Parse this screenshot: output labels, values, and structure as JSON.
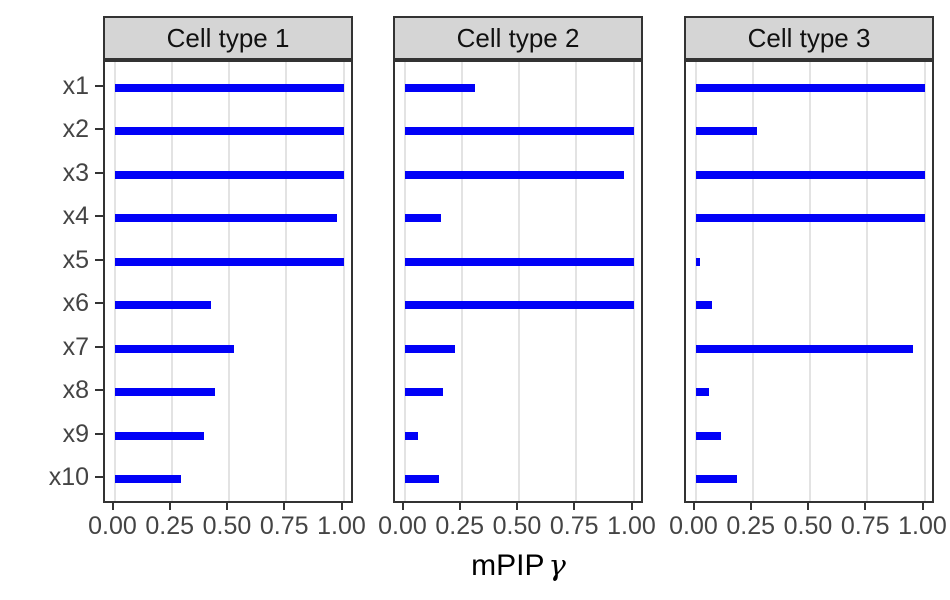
{
  "figure": {
    "background": "#ffffff",
    "bar_color": "#0101f7",
    "strip_fill": "#d5d5d5",
    "panel_border_color": "#333333",
    "gridline_color": "#e3e3e3",
    "axis_text_color": "#444444"
  },
  "chart_data": {
    "type": "bar",
    "orientation": "horizontal",
    "title": "",
    "xlabel": "mPIP γ",
    "xlabel_main": "mPIP",
    "xlabel_symbol": "γ",
    "ylabel": "",
    "facets": [
      "Cell type 1",
      "Cell type 2",
      "Cell type 3"
    ],
    "categories": [
      "x1",
      "x2",
      "x3",
      "x4",
      "x5",
      "x6",
      "x7",
      "x8",
      "x9",
      "x10"
    ],
    "series": [
      {
        "name": "Cell type 1",
        "values": [
          1.0,
          1.0,
          1.0,
          0.97,
          1.0,
          0.42,
          0.52,
          0.44,
          0.39,
          0.29
        ]
      },
      {
        "name": "Cell type 2",
        "values": [
          0.31,
          1.0,
          0.96,
          0.16,
          1.0,
          1.0,
          0.22,
          0.17,
          0.06,
          0.15
        ]
      },
      {
        "name": "Cell type 3",
        "values": [
          1.0,
          0.27,
          1.0,
          1.0,
          0.02,
          0.07,
          0.95,
          0.06,
          0.11,
          0.18
        ]
      }
    ],
    "x_tick_labels": [
      "0.00",
      "0.25",
      "0.50",
      "0.75",
      "1.00"
    ],
    "x_tick_values": [
      0,
      0.25,
      0.5,
      0.75,
      1.0
    ],
    "xlim": [
      0,
      1
    ],
    "grid": "vertical-major-only",
    "legend": "none"
  }
}
